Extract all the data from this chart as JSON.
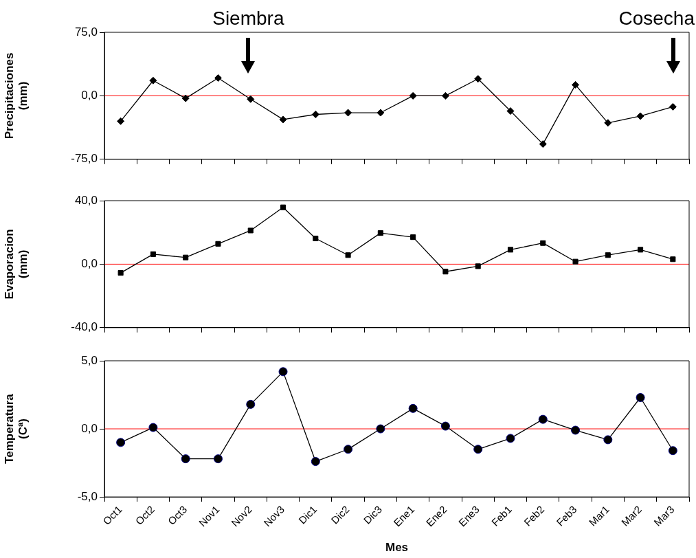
{
  "chart_data": [
    {
      "type": "line",
      "ylabel": "Precipitaciones (mm)",
      "categories": [
        null,
        null,
        null,
        null,
        null,
        null,
        null,
        null,
        null,
        null,
        null,
        null,
        null,
        null,
        null,
        null,
        null,
        null
      ],
      "series": [
        {
          "color": "#000000",
          "values": [
            -30,
            18,
            -3,
            21,
            -4,
            -28,
            -22,
            -20,
            -20,
            0,
            0,
            20,
            -18,
            -57,
            13,
            -32,
            -24,
            -13
          ]
        }
      ],
      "ylim": [
        -75,
        75
      ],
      "yticks": [
        {
          "value": -75,
          "label": "-75,0"
        },
        {
          "value": 0,
          "label": "0,0"
        },
        {
          "value": 75,
          "label": "75,0"
        }
      ],
      "ref_lines": [
        {
          "axis": "y",
          "value": 0,
          "color": "#ff0000"
        }
      ],
      "annotations": [
        "Siembra",
        "Cosecha"
      ],
      "marker": "diamond",
      "grid": false,
      "legend": false,
      "tick_labels": "y"
    },
    {
      "type": "line",
      "ylabel": "Evaporacion (mm)",
      "categories": [
        null,
        null,
        null,
        null,
        null,
        null,
        null,
        null,
        null,
        null,
        null,
        null,
        null,
        null,
        null,
        null,
        null,
        null
      ],
      "series": [
        {
          "color": "#000000",
          "values": [
            -5.5,
            6.3,
            4.2,
            12.8,
            21.2,
            35.8,
            16.2,
            5.7,
            19.6,
            17,
            -4.7,
            -1.3,
            9.1,
            13.3,
            1.6,
            5.7,
            9.1,
            3.1
          ]
        }
      ],
      "ylim": [
        -40,
        40
      ],
      "yticks": [
        {
          "value": -40,
          "label": "-40,0"
        },
        {
          "value": 0,
          "label": "0,0"
        },
        {
          "value": 40,
          "label": "40,0"
        }
      ],
      "ref_lines": [
        {
          "axis": "y",
          "value": 0,
          "color": "#ff0000"
        }
      ],
      "marker": "square",
      "grid": false,
      "legend": false,
      "tick_labels": "y"
    },
    {
      "type": "line",
      "ylabel": "Temperatura (Cª)",
      "xlabel": "Mes",
      "categories": [
        "Oct1",
        "Oct2",
        "Oct3",
        "Nov1",
        "Nov2",
        "Nov3",
        "Dic1",
        "Dic2",
        "Dic3",
        "Ene1",
        "Ene2",
        "Ene3",
        "Feb1",
        "Feb2",
        "Feb3",
        "Mar1",
        "Mar2",
        "Mar3"
      ],
      "series": [
        {
          "color": "#000000",
          "values": [
            -1.0,
            0.1,
            -2.2,
            -2.2,
            1.8,
            4.2,
            -2.4,
            -1.5,
            0.0,
            1.5,
            0.2,
            -1.5,
            -0.7,
            0.7,
            -0.1,
            -0.8,
            2.3,
            -1.6
          ]
        }
      ],
      "ylim": [
        -5,
        5
      ],
      "yticks": [
        {
          "value": -5,
          "label": "-5,0"
        },
        {
          "value": 0,
          "label": "0,0"
        },
        {
          "value": 5,
          "label": "5,0"
        }
      ],
      "ref_lines": [
        {
          "axis": "y",
          "value": 0,
          "color": "#ff0000"
        }
      ],
      "marker": "circle",
      "grid": false,
      "legend": false
    }
  ]
}
